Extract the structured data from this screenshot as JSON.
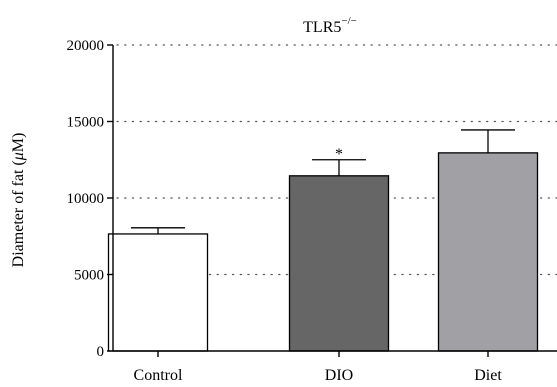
{
  "chart_data": {
    "type": "bar",
    "title": "TLR5",
    "title_superscript": "−/−",
    "ylabel_prefix": "Diameter of fat (",
    "ylabel_unit_symbol": "μ",
    "ylabel_unit": "M)",
    "xlabel": "",
    "categories": [
      "Control",
      "DIO",
      "Diet"
    ],
    "values": [
      7650,
      11450,
      12950
    ],
    "errors": [
      400,
      1050,
      1500
    ],
    "significance": [
      "",
      "*",
      ""
    ],
    "colors": [
      "#ffffff",
      "#666666",
      "#a0a0a5"
    ],
    "ylim": [
      0,
      20000
    ],
    "yticks": [
      0,
      5000,
      10000,
      15000,
      20000
    ],
    "ytick_labels": [
      "0",
      "5000",
      "10000",
      "15000",
      "20000"
    ],
    "grid": "horizontal-dotted"
  }
}
